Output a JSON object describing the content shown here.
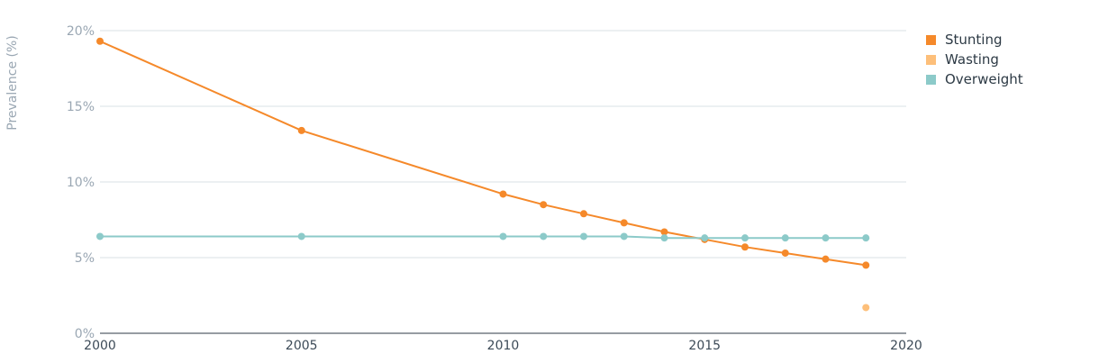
{
  "chart_data": {
    "type": "line",
    "ylabel": "Prevalence (%)",
    "xlim": [
      2000,
      2020
    ],
    "ylim": [
      0,
      20
    ],
    "x_ticks": [
      "2000",
      "2005",
      "2010",
      "2015",
      "2020"
    ],
    "y_ticks": [
      "0%",
      "5%",
      "10%",
      "15%",
      "20%"
    ],
    "grid": true,
    "legend_position": "right",
    "series": [
      {
        "name": "Stunting",
        "color": "#f5892a",
        "x": [
          2000,
          2005,
          2010,
          2011,
          2012,
          2013,
          2014,
          2015,
          2016,
          2017,
          2018,
          2019
        ],
        "y": [
          19.3,
          13.4,
          9.2,
          8.5,
          7.9,
          7.3,
          6.7,
          6.2,
          5.7,
          5.3,
          4.9,
          4.5
        ]
      },
      {
        "name": "Wasting",
        "color": "#fdbf7a",
        "x": [
          2019
        ],
        "y": [
          1.7
        ]
      },
      {
        "name": "Overweight",
        "color": "#8ccac9",
        "x": [
          2000,
          2005,
          2010,
          2011,
          2012,
          2013,
          2014,
          2015,
          2016,
          2017,
          2018,
          2019
        ],
        "y": [
          6.4,
          6.4,
          6.4,
          6.4,
          6.4,
          6.4,
          6.3,
          6.3,
          6.3,
          6.3,
          6.3,
          6.3
        ]
      }
    ]
  }
}
